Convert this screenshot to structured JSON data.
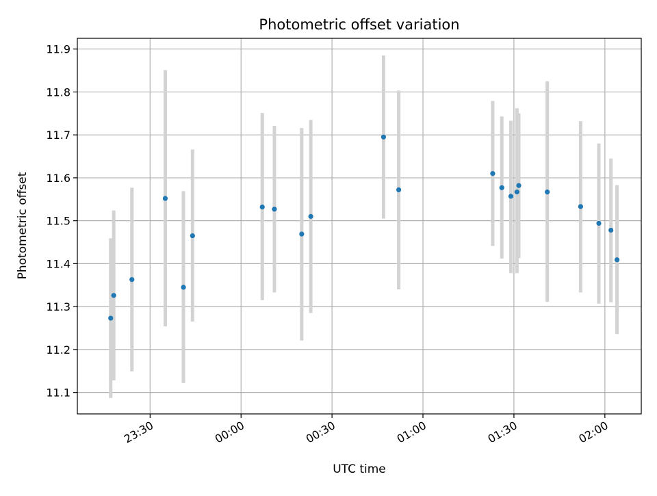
{
  "chart_data": {
    "type": "scatter",
    "title": "Photometric offset variation",
    "xlabel": "UTC time",
    "ylabel": "Photometric offset",
    "x_unit": "UTC time (HH:MM)",
    "xlim": [
      "23:06",
      "02:12"
    ],
    "ylim": [
      11.05,
      11.925
    ],
    "x_ticks": [
      "23:30",
      "00:00",
      "00:30",
      "01:00",
      "01:30",
      "02:00"
    ],
    "y_ticks": [
      "11.1",
      "11.2",
      "11.3",
      "11.4",
      "11.5",
      "11.6",
      "11.7",
      "11.8",
      "11.9"
    ],
    "grid": true,
    "point_color": "#1f77b4",
    "errorbar_color": "#d3d3d3",
    "points": [
      {
        "x": "23:17",
        "y": 11.273,
        "y_low": 11.087,
        "y_high": 11.459
      },
      {
        "x": "23:18",
        "y": 11.326,
        "y_low": 11.128,
        "y_high": 11.524
      },
      {
        "x": "23:24",
        "y": 11.363,
        "y_low": 11.149,
        "y_high": 11.577
      },
      {
        "x": "23:35",
        "y": 11.552,
        "y_low": 11.254,
        "y_high": 11.851
      },
      {
        "x": "23:41",
        "y": 11.345,
        "y_low": 11.122,
        "y_high": 11.569
      },
      {
        "x": "23:44",
        "y": 11.465,
        "y_low": 11.265,
        "y_high": 11.666
      },
      {
        "x": "00:07",
        "y": 11.532,
        "y_low": 11.315,
        "y_high": 11.751
      },
      {
        "x": "00:11",
        "y": 11.527,
        "y_low": 11.333,
        "y_high": 11.721
      },
      {
        "x": "00:20",
        "y": 11.469,
        "y_low": 11.221,
        "y_high": 11.716
      },
      {
        "x": "00:23",
        "y": 11.51,
        "y_low": 11.285,
        "y_high": 11.735
      },
      {
        "x": "00:47",
        "y": 11.695,
        "y_low": 11.505,
        "y_high": 11.885
      },
      {
        "x": "00:52",
        "y": 11.572,
        "y_low": 11.34,
        "y_high": 11.803
      },
      {
        "x": "01:23",
        "y": 11.61,
        "y_low": 11.441,
        "y_high": 11.779
      },
      {
        "x": "01:26",
        "y": 11.577,
        "y_low": 11.412,
        "y_high": 11.743
      },
      {
        "x": "01:29",
        "y": 11.557,
        "y_low": 11.378,
        "y_high": 11.733
      },
      {
        "x": "01:31",
        "y": 11.567,
        "y_low": 11.378,
        "y_high": 11.762
      },
      {
        "x": "01:31",
        "y": 11.582,
        "y_low": 11.413,
        "y_high": 11.75
      },
      {
        "x": "01:41",
        "y": 11.567,
        "y_low": 11.311,
        "y_high": 11.825
      },
      {
        "x": "01:52",
        "y": 11.533,
        "y_low": 11.333,
        "y_high": 11.732
      },
      {
        "x": "01:58",
        "y": 11.494,
        "y_low": 11.307,
        "y_high": 11.68
      },
      {
        "x": "02:02",
        "y": 11.478,
        "y_low": 11.31,
        "y_high": 11.645
      },
      {
        "x": "02:04",
        "y": 11.409,
        "y_low": 11.236,
        "y_high": 11.583
      }
    ]
  }
}
